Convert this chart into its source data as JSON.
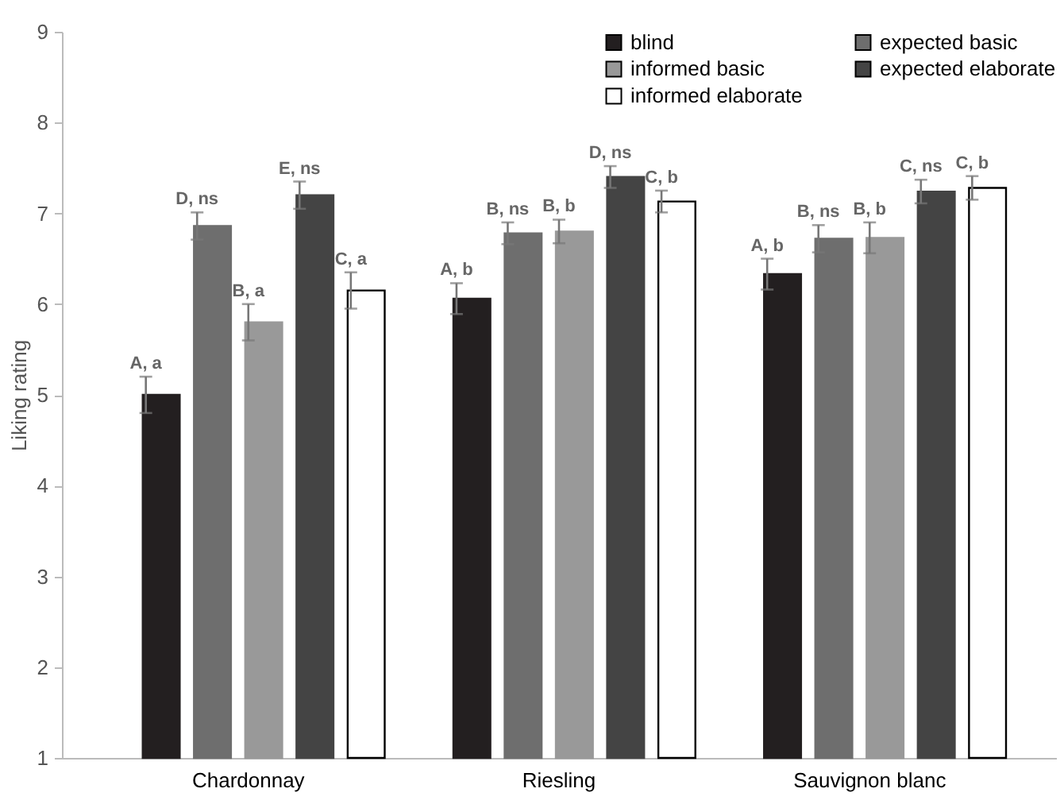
{
  "chart_data": {
    "type": "bar",
    "ylabel": "Liking rating",
    "categories": [
      "Chardonnay",
      "Riesling",
      "Sauvignon blanc"
    ],
    "series": [
      {
        "name": "blind",
        "color": "#231f20",
        "values": [
          5.0,
          6.06,
          6.33
        ],
        "errors": [
          0.2,
          0.17,
          0.17
        ],
        "value_labels": [
          "A, a",
          "A, b",
          "A, b"
        ]
      },
      {
        "name": "expected basic",
        "color": "#6e6e6e",
        "values": [
          6.86,
          6.78,
          6.72
        ],
        "errors": [
          0.15,
          0.12,
          0.15
        ],
        "value_labels": [
          "D, ns",
          "B, ns",
          "B, ns"
        ]
      },
      {
        "name": "informed basic",
        "color": "#999999",
        "values": [
          5.8,
          6.8,
          6.73
        ],
        "errors": [
          0.2,
          0.13,
          0.17
        ],
        "value_labels": [
          "B, a",
          "B, b",
          "B, b"
        ]
      },
      {
        "name": "expected elaborate",
        "color": "#444444",
        "values": [
          7.2,
          7.4,
          7.24
        ],
        "errors": [
          0.15,
          0.12,
          0.13
        ],
        "value_labels": [
          "E, ns",
          "D, ns",
          "C, ns"
        ]
      },
      {
        "name": "informed elaborate",
        "color": "#ffffff",
        "values": [
          6.15,
          7.13,
          7.28
        ],
        "errors": [
          0.2,
          0.12,
          0.13
        ],
        "value_labels": [
          "C, a",
          "C, b",
          "C, b"
        ]
      }
    ],
    "ylim": [
      1,
      9
    ],
    "yticks": [
      1,
      2,
      3,
      4,
      5,
      6,
      7,
      8,
      9
    ],
    "grid": false,
    "legend": "top right"
  }
}
